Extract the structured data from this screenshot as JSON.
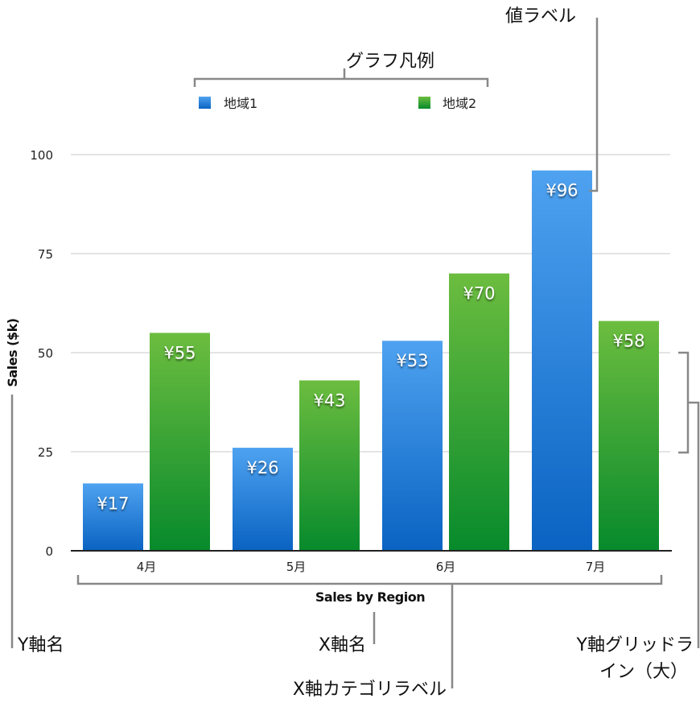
{
  "chart_data": {
    "type": "bar",
    "categories": [
      "4月",
      "5月",
      "6月",
      "7月"
    ],
    "series": [
      {
        "name": "地域1",
        "values": [
          17,
          26,
          53,
          96
        ],
        "color": "#2f86e0"
      },
      {
        "name": "地域2",
        "values": [
          55,
          43,
          70,
          58
        ],
        "color": "#3ba33a"
      }
    ],
    "value_labels": [
      [
        "¥17",
        "¥26",
        "¥53",
        "¥96"
      ],
      [
        "¥55",
        "¥43",
        "¥70",
        "¥58"
      ]
    ],
    "xlabel": "Sales by Region",
    "ylabel": "Sales ($k)",
    "ylim": [
      0,
      100
    ],
    "yticks": [
      "0",
      "25",
      "50",
      "75",
      "100"
    ],
    "grid": true,
    "legend": "top"
  },
  "annotations": {
    "value_label": "値ラベル",
    "legend": "グラフ凡例",
    "y_axis_name": "Y軸名",
    "x_axis_name": "X軸名",
    "x_category_labels": "X軸カテゴリラベル",
    "y_gridlines_line1": "Y軸グリッドラ",
    "y_gridlines_line2": "イン（大）"
  }
}
